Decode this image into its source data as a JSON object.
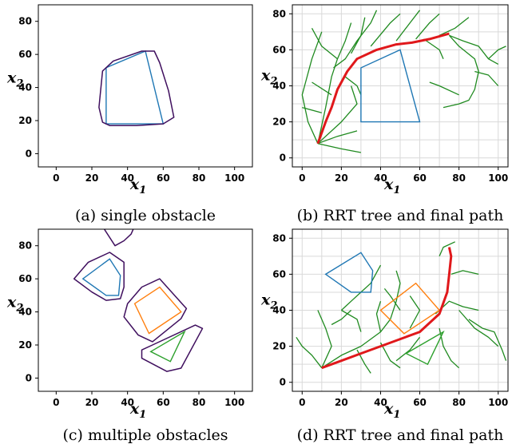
{
  "chart_data": [
    {
      "id": "a",
      "type": "line",
      "caption": "(a) single obstacle",
      "xlabel_main": "x",
      "xlabel_sub": "1",
      "ylabel_main": "x",
      "ylabel_sub": "2",
      "xlim": [
        -10,
        110
      ],
      "ylim": [
        -8,
        90
      ],
      "xticks": [
        0,
        20,
        40,
        60,
        80,
        100
      ],
      "yticks": [
        0,
        20,
        40,
        60,
        80
      ],
      "grid": false,
      "obstacles": [
        {
          "color": "#1f77b4",
          "points": [
            [
              28,
              18
            ],
            [
              28,
              52
            ],
            [
              50,
              62
            ],
            [
              60,
              18
            ]
          ]
        }
      ],
      "inflated": [
        {
          "color": "#3f0f5e",
          "points": [
            [
              26,
              19
            ],
            [
              24,
              28
            ],
            [
              26,
              50
            ],
            [
              32,
              56
            ],
            [
              48,
              62
            ],
            [
              55,
              62
            ],
            [
              58,
              55
            ],
            [
              63,
              38
            ],
            [
              66,
              22
            ],
            [
              60,
              18
            ],
            [
              45,
              17
            ],
            [
              30,
              17
            ]
          ]
        }
      ],
      "tree": [],
      "path": []
    },
    {
      "id": "b",
      "type": "line",
      "caption": "(b) RRT tree and final path",
      "xlabel_main": "x",
      "xlabel_sub": "1",
      "ylabel_main": "x",
      "ylabel_sub": "2",
      "xlim": [
        -5,
        105
      ],
      "ylim": [
        -5,
        85
      ],
      "xticks": [
        0,
        20,
        40,
        60,
        80,
        100
      ],
      "yticks": [
        0,
        20,
        40,
        60,
        80
      ],
      "grid": true,
      "obstacles": [
        {
          "color": "#1f77b4",
          "points": [
            [
              30,
              20
            ],
            [
              30,
              50
            ],
            [
              50,
              60
            ],
            [
              60,
              20
            ]
          ]
        }
      ],
      "inflated": [],
      "tree": [
        [
          [
            8,
            8
          ],
          [
            12,
            28
          ],
          [
            15,
            45
          ],
          [
            18,
            55
          ],
          [
            22,
            65
          ],
          [
            25,
            75
          ]
        ],
        [
          [
            8,
            8
          ],
          [
            3,
            20
          ],
          [
            0,
            35
          ],
          [
            5,
            55
          ],
          [
            10,
            70
          ]
        ],
        [
          [
            8,
            8
          ],
          [
            20,
            20
          ],
          [
            28,
            30
          ],
          [
            25,
            40
          ]
        ],
        [
          [
            8,
            8
          ],
          [
            18,
            12
          ],
          [
            28,
            15
          ]
        ],
        [
          [
            8,
            8
          ],
          [
            20,
            5
          ],
          [
            30,
            3
          ]
        ],
        [
          [
            16,
            50
          ],
          [
            22,
            55
          ],
          [
            28,
            65
          ],
          [
            35,
            75
          ],
          [
            38,
            82
          ]
        ],
        [
          [
            25,
            58
          ],
          [
            30,
            68
          ],
          [
            32,
            78
          ]
        ],
        [
          [
            18,
            55
          ],
          [
            10,
            62
          ],
          [
            5,
            72
          ]
        ],
        [
          [
            22,
            45
          ],
          [
            28,
            40
          ],
          [
            30,
            35
          ]
        ],
        [
          [
            10,
            25
          ],
          [
            0,
            28
          ]
        ],
        [
          [
            15,
            35
          ],
          [
            5,
            42
          ]
        ],
        [
          [
            35,
            62
          ],
          [
            45,
            75
          ],
          [
            50,
            80
          ]
        ],
        [
          [
            48,
            65
          ],
          [
            55,
            75
          ],
          [
            60,
            82
          ]
        ],
        [
          [
            58,
            66
          ],
          [
            65,
            75
          ],
          [
            70,
            80
          ]
        ],
        [
          [
            70,
            68
          ],
          [
            78,
            72
          ],
          [
            85,
            78
          ]
        ],
        [
          [
            75,
            68
          ],
          [
            82,
            65
          ],
          [
            90,
            62
          ],
          [
            95,
            55
          ],
          [
            100,
            52
          ]
        ],
        [
          [
            75,
            68
          ],
          [
            80,
            62
          ],
          [
            88,
            55
          ],
          [
            90,
            48
          ],
          [
            88,
            38
          ],
          [
            85,
            32
          ],
          [
            80,
            30
          ],
          [
            72,
            28
          ]
        ],
        [
          [
            80,
            35
          ],
          [
            70,
            40
          ],
          [
            65,
            42
          ]
        ],
        [
          [
            88,
            48
          ],
          [
            95,
            46
          ],
          [
            100,
            40
          ]
        ],
        [
          [
            62,
            66
          ],
          [
            70,
            60
          ],
          [
            72,
            55
          ]
        ],
        [
          [
            95,
            55
          ],
          [
            100,
            60
          ],
          [
            104,
            62
          ]
        ]
      ],
      "path": [
        [
          8,
          8
        ],
        [
          12,
          20
        ],
        [
          15,
          28
        ],
        [
          18,
          38
        ],
        [
          23,
          48
        ],
        [
          28,
          55
        ],
        [
          38,
          60
        ],
        [
          48,
          63
        ],
        [
          56,
          64
        ],
        [
          65,
          66
        ],
        [
          75,
          69
        ]
      ]
    },
    {
      "id": "c",
      "type": "line",
      "caption": "(c) multiple obstacles",
      "xlabel_main": "x",
      "xlabel_sub": "1",
      "ylabel_main": "x",
      "ylabel_sub": "2",
      "xlim": [
        -10,
        110
      ],
      "ylim": [
        -8,
        90
      ],
      "xticks": [
        0,
        20,
        40,
        60,
        80,
        100
      ],
      "yticks": [
        0,
        20,
        40,
        60,
        80
      ],
      "grid": false,
      "obstacles": [
        {
          "color": "#1f77b4",
          "points": [
            [
              15,
              60
            ],
            [
              30,
              72
            ],
            [
              36,
              62
            ],
            [
              35,
              50
            ],
            [
              28,
              50
            ]
          ]
        },
        {
          "color": "#ff7f0e",
          "points": [
            [
              52,
              27
            ],
            [
              70,
              40
            ],
            [
              58,
              55
            ],
            [
              44,
              45
            ]
          ]
        },
        {
          "color": "#2ca02c",
          "points": [
            [
              53,
              16
            ],
            [
              72,
              28
            ],
            [
              64,
              10
            ]
          ]
        }
      ],
      "inflated": [
        {
          "color": "#3f0f5e",
          "points": [
            [
              10,
              60
            ],
            [
              18,
              70
            ],
            [
              30,
              76
            ],
            [
              38,
              70
            ],
            [
              38,
              55
            ],
            [
              36,
              48
            ],
            [
              28,
              47
            ],
            [
              20,
              52
            ]
          ]
        },
        {
          "color": "#3f0f5e",
          "points": [
            [
              40,
              45
            ],
            [
              48,
              55
            ],
            [
              58,
              60
            ],
            [
              73,
              42
            ],
            [
              70,
              36
            ],
            [
              54,
              22
            ],
            [
              46,
              26
            ],
            [
              38,
              37
            ]
          ]
        },
        {
          "color": "#3f0f5e",
          "points": [
            [
              48,
              17
            ],
            [
              54,
              20
            ],
            [
              78,
              32
            ],
            [
              82,
              30
            ],
            [
              70,
              6
            ],
            [
              62,
              4
            ],
            [
              48,
              12
            ]
          ]
        },
        {
          "color": "#3f0f5e",
          "points": [
            [
              27,
              90
            ],
            [
              33,
              80
            ],
            [
              38,
              83
            ],
            [
              42,
              87
            ],
            [
              44,
              92
            ]
          ]
        }
      ],
      "tree": [],
      "path": []
    },
    {
      "id": "d",
      "type": "line",
      "caption": "(d) RRT tree and final path",
      "xlabel_main": "x",
      "xlabel_sub": "1",
      "ylabel_main": "x",
      "ylabel_sub": "2",
      "xlim": [
        -5,
        105
      ],
      "ylim": [
        -5,
        85
      ],
      "xticks": [
        0,
        20,
        40,
        60,
        80,
        100
      ],
      "yticks": [
        0,
        20,
        40,
        60,
        80
      ],
      "grid": true,
      "obstacles": [
        {
          "color": "#1f77b4",
          "points": [
            [
              12,
              60
            ],
            [
              30,
              72
            ],
            [
              36,
              62
            ],
            [
              35,
              50
            ],
            [
              25,
              50
            ]
          ]
        },
        {
          "color": "#ff7f0e",
          "points": [
            [
              52,
              27
            ],
            [
              70,
              40
            ],
            [
              58,
              55
            ],
            [
              40,
              40
            ]
          ]
        },
        {
          "color": "#2ca02c",
          "points": [
            [
              53,
              16
            ],
            [
              72,
              28
            ],
            [
              64,
              10
            ]
          ]
        }
      ],
      "inflated": [],
      "tree": [
        [
          [
            10,
            8
          ],
          [
            20,
            15
          ],
          [
            30,
            20
          ],
          [
            40,
            28
          ],
          [
            45,
            35
          ]
        ],
        [
          [
            10,
            8
          ],
          [
            5,
            15
          ],
          [
            0,
            20
          ],
          [
            -3,
            25
          ]
        ],
        [
          [
            10,
            8
          ],
          [
            15,
            20
          ],
          [
            12,
            30
          ],
          [
            8,
            40
          ]
        ],
        [
          [
            20,
            40
          ],
          [
            25,
            45
          ],
          [
            30,
            50
          ],
          [
            35,
            55
          ],
          [
            40,
            65
          ]
        ],
        [
          [
            25,
            40
          ],
          [
            20,
            35
          ],
          [
            15,
            32
          ]
        ],
        [
          [
            30,
            28
          ],
          [
            28,
            35
          ],
          [
            20,
            40
          ]
        ],
        [
          [
            40,
            28
          ],
          [
            38,
            38
          ],
          [
            40,
            45
          ]
        ],
        [
          [
            45,
            35
          ],
          [
            48,
            45
          ],
          [
            50,
            55
          ],
          [
            48,
            62
          ]
        ],
        [
          [
            55,
            30
          ],
          [
            60,
            40
          ],
          [
            55,
            48
          ]
        ],
        [
          [
            68,
            38
          ],
          [
            75,
            45
          ],
          [
            82,
            42
          ],
          [
            90,
            40
          ]
        ],
        [
          [
            80,
            40
          ],
          [
            88,
            30
          ],
          [
            95,
            25
          ],
          [
            100,
            20
          ]
        ],
        [
          [
            85,
            35
          ],
          [
            92,
            30
          ],
          [
            98,
            28
          ],
          [
            102,
            18
          ],
          [
            104,
            12
          ]
        ],
        [
          [
            70,
            30
          ],
          [
            72,
            20
          ],
          [
            76,
            12
          ],
          [
            80,
            8
          ]
        ],
        [
          [
            60,
            25
          ],
          [
            55,
            18
          ],
          [
            48,
            12
          ]
        ],
        [
          [
            70,
            70
          ],
          [
            72,
            75
          ],
          [
            78,
            78
          ]
        ],
        [
          [
            76,
            60
          ],
          [
            82,
            62
          ],
          [
            90,
            60
          ]
        ],
        [
          [
            40,
            22
          ],
          [
            45,
            12
          ],
          [
            50,
            8
          ]
        ],
        [
          [
            28,
            18
          ],
          [
            32,
            10
          ],
          [
            35,
            5
          ]
        ],
        [
          [
            50,
            40
          ],
          [
            45,
            48
          ],
          [
            42,
            52
          ]
        ]
      ],
      "path": [
        [
          10,
          8
        ],
        [
          20,
          12
        ],
        [
          30,
          16
        ],
        [
          40,
          20
        ],
        [
          50,
          24
        ],
        [
          60,
          28
        ],
        [
          70,
          38
        ],
        [
          74,
          50
        ],
        [
          75,
          60
        ],
        [
          76,
          70
        ],
        [
          75,
          75
        ]
      ]
    }
  ]
}
